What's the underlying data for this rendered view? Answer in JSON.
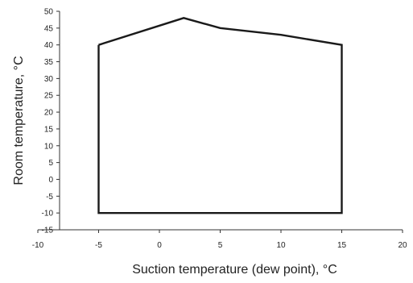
{
  "chart_data": {
    "type": "line",
    "title": "",
    "xlabel": "Suction temperature (dew point), °C",
    "ylabel": "Room temperature, °C",
    "xlim": [
      -10,
      20
    ],
    "ylim": [
      -15,
      50
    ],
    "x_ticks": [
      -10,
      -5,
      0,
      5,
      10,
      15,
      20
    ],
    "y_ticks": [
      -15,
      -10,
      -5,
      0,
      5,
      10,
      15,
      20,
      25,
      30,
      35,
      40,
      45,
      50
    ],
    "grid": false,
    "legend": "none",
    "series": [
      {
        "closed": true,
        "color": "#1a1a1a",
        "x": [
          -5,
          2,
          5,
          10,
          15,
          15,
          -5,
          -5
        ],
        "y": [
          40,
          48,
          45,
          43,
          40,
          -10,
          -10,
          40
        ]
      }
    ]
  }
}
